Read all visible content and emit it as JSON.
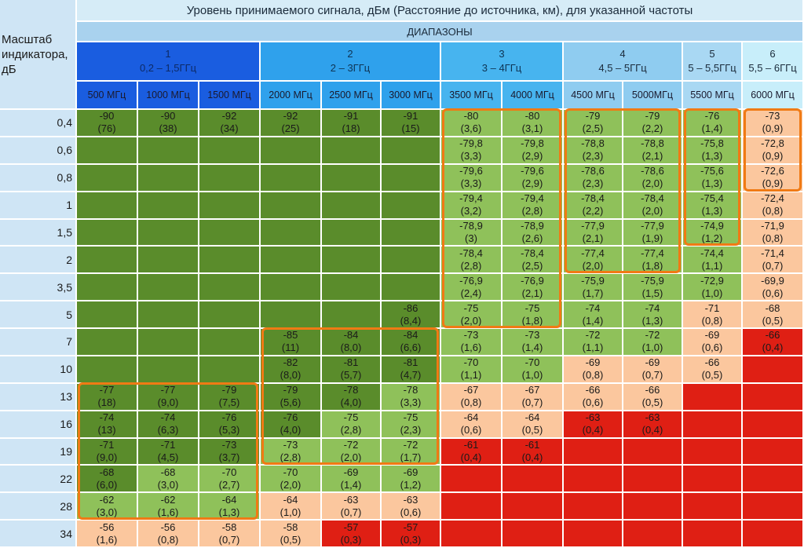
{
  "title": "Уровень принимаемого сигнала, дБм (Расстояние до источника, км), для указанной частоты",
  "ranges_label": "ДИАПАЗОНЫ",
  "corner_label": "Масштаб индикатора, дБ",
  "bands": [
    {
      "num": "1",
      "range": "0,2 – 1,5ГГц"
    },
    {
      "num": "2",
      "range": "2 – 3ГГц"
    },
    {
      "num": "3",
      "range": "3 – 4ГГц"
    },
    {
      "num": "4",
      "range": "4,5 – 5ГГц"
    },
    {
      "num": "5",
      "range": "5 – 5,5ГГц"
    },
    {
      "num": "6",
      "range": "5,5 – 6ГГц"
    }
  ],
  "frequencies": [
    "500 МГц",
    "1000 МГц",
    "1500 МГц",
    "2000 МГц",
    "2500 МГц",
    "3000 МГц",
    "3500 МГц",
    "4000 МГц",
    "4500 МГц",
    "5000МГц",
    "5500 МГц",
    "6000 МГц"
  ],
  "scales": [
    "0,4",
    "0,6",
    "0,8",
    "1",
    "1,5",
    "2",
    "3,5",
    "5",
    "7",
    "10",
    "13",
    "16",
    "19",
    "22",
    "28",
    "34"
  ],
  "colors": {
    "dark_green": "#5a8c2b",
    "light_green": "#8fc15a",
    "peach": "#fbc79e",
    "red": "#df1f14",
    "highlight": "#f07a14"
  },
  "grid": [
    [
      {
        "v": "-90",
        "d": "(76)",
        "c": "G"
      },
      {
        "v": "-90",
        "d": "(38)",
        "c": "G"
      },
      {
        "v": "-92",
        "d": "(34)",
        "c": "G"
      },
      {
        "v": "-92",
        "d": "(25)",
        "c": "G"
      },
      {
        "v": "-91",
        "d": "(18)",
        "c": "G"
      },
      {
        "v": "-91",
        "d": "(15)",
        "c": "G"
      },
      {
        "v": "-80",
        "d": "(3,6)",
        "c": "L"
      },
      {
        "v": "-80",
        "d": "(3,1)",
        "c": "L"
      },
      {
        "v": "-79",
        "d": "(2,5)",
        "c": "L"
      },
      {
        "v": "-79",
        "d": "(2,2)",
        "c": "L"
      },
      {
        "v": "-76",
        "d": "(1,4)",
        "c": "L"
      },
      {
        "v": "-73",
        "d": "(0,9)",
        "c": "P"
      }
    ],
    [
      {
        "v": "",
        "d": "",
        "c": "G"
      },
      {
        "v": "",
        "d": "",
        "c": "G"
      },
      {
        "v": "",
        "d": "",
        "c": "G"
      },
      {
        "v": "",
        "d": "",
        "c": "G"
      },
      {
        "v": "",
        "d": "",
        "c": "G"
      },
      {
        "v": "",
        "d": "",
        "c": "G"
      },
      {
        "v": "-79,8",
        "d": "(3,3)",
        "c": "L"
      },
      {
        "v": "-79,8",
        "d": "(2,9)",
        "c": "L"
      },
      {
        "v": "-78,8",
        "d": "(2,3)",
        "c": "L"
      },
      {
        "v": "-78,8",
        "d": "(2,1)",
        "c": "L"
      },
      {
        "v": "-75,8",
        "d": "(1,3)",
        "c": "L"
      },
      {
        "v": "-72,8",
        "d": "(0,9)",
        "c": "P"
      }
    ],
    [
      {
        "v": "",
        "d": "",
        "c": "G"
      },
      {
        "v": "",
        "d": "",
        "c": "G"
      },
      {
        "v": "",
        "d": "",
        "c": "G"
      },
      {
        "v": "",
        "d": "",
        "c": "G"
      },
      {
        "v": "",
        "d": "",
        "c": "G"
      },
      {
        "v": "",
        "d": "",
        "c": "G"
      },
      {
        "v": "-79,6",
        "d": "(3,3)",
        "c": "L"
      },
      {
        "v": "-79,6",
        "d": "(2,9)",
        "c": "L"
      },
      {
        "v": "-78,6",
        "d": "(2,3)",
        "c": "L"
      },
      {
        "v": "-78,6",
        "d": "(2,0)",
        "c": "L"
      },
      {
        "v": "-75,6",
        "d": "(1,3)",
        "c": "L"
      },
      {
        "v": "-72,6",
        "d": "(0,9)",
        "c": "P"
      }
    ],
    [
      {
        "v": "",
        "d": "",
        "c": "G"
      },
      {
        "v": "",
        "d": "",
        "c": "G"
      },
      {
        "v": "",
        "d": "",
        "c": "G"
      },
      {
        "v": "",
        "d": "",
        "c": "G"
      },
      {
        "v": "",
        "d": "",
        "c": "G"
      },
      {
        "v": "",
        "d": "",
        "c": "G"
      },
      {
        "v": "-79,4",
        "d": "(3,2)",
        "c": "L"
      },
      {
        "v": "-79,4",
        "d": "(2,8)",
        "c": "L"
      },
      {
        "v": "-78,4",
        "d": "(2,2)",
        "c": "L"
      },
      {
        "v": "-78,4",
        "d": "(2,0)",
        "c": "L"
      },
      {
        "v": "-75,4",
        "d": "(1,3)",
        "c": "L"
      },
      {
        "v": "-72,4",
        "d": "(0,8)",
        "c": "P"
      }
    ],
    [
      {
        "v": "",
        "d": "",
        "c": "G"
      },
      {
        "v": "",
        "d": "",
        "c": "G"
      },
      {
        "v": "",
        "d": "",
        "c": "G"
      },
      {
        "v": "",
        "d": "",
        "c": "G"
      },
      {
        "v": "",
        "d": "",
        "c": "G"
      },
      {
        "v": "",
        "d": "",
        "c": "G"
      },
      {
        "v": "-78,9",
        "d": "(3)",
        "c": "L"
      },
      {
        "v": "-78,9",
        "d": "(2,6)",
        "c": "L"
      },
      {
        "v": "-77,9",
        "d": "(2,1)",
        "c": "L"
      },
      {
        "v": "-77,9",
        "d": "(1,9)",
        "c": "L"
      },
      {
        "v": "-74,9",
        "d": "(1,2)",
        "c": "L"
      },
      {
        "v": "-71,9",
        "d": "(0,8)",
        "c": "P"
      }
    ],
    [
      {
        "v": "",
        "d": "",
        "c": "G"
      },
      {
        "v": "",
        "d": "",
        "c": "G"
      },
      {
        "v": "",
        "d": "",
        "c": "G"
      },
      {
        "v": "",
        "d": "",
        "c": "G"
      },
      {
        "v": "",
        "d": "",
        "c": "G"
      },
      {
        "v": "",
        "d": "",
        "c": "G"
      },
      {
        "v": "-78,4",
        "d": "(2,8)",
        "c": "L"
      },
      {
        "v": "-78,4",
        "d": "(2,5)",
        "c": "L"
      },
      {
        "v": "-77,4",
        "d": "(2,0)",
        "c": "L"
      },
      {
        "v": "-77,4",
        "d": "(1,8)",
        "c": "L"
      },
      {
        "v": "-74,4",
        "d": "(1,1)",
        "c": "L"
      },
      {
        "v": "-71,4",
        "d": "(0,7)",
        "c": "P"
      }
    ],
    [
      {
        "v": "",
        "d": "",
        "c": "G"
      },
      {
        "v": "",
        "d": "",
        "c": "G"
      },
      {
        "v": "",
        "d": "",
        "c": "G"
      },
      {
        "v": "",
        "d": "",
        "c": "G"
      },
      {
        "v": "",
        "d": "",
        "c": "G"
      },
      {
        "v": "",
        "d": "",
        "c": "G"
      },
      {
        "v": "-76,9",
        "d": "(2,4)",
        "c": "L"
      },
      {
        "v": "-76,9",
        "d": "(2,1)",
        "c": "L"
      },
      {
        "v": "-75,9",
        "d": "(1,7)",
        "c": "L"
      },
      {
        "v": "-75,9",
        "d": "(1,5)",
        "c": "L"
      },
      {
        "v": "-72,9",
        "d": "(1,0)",
        "c": "L"
      },
      {
        "v": "-69,9",
        "d": "(0,6)",
        "c": "P"
      }
    ],
    [
      {
        "v": "",
        "d": "",
        "c": "G"
      },
      {
        "v": "",
        "d": "",
        "c": "G"
      },
      {
        "v": "",
        "d": "",
        "c": "G"
      },
      {
        "v": "",
        "d": "",
        "c": "G"
      },
      {
        "v": "",
        "d": "",
        "c": "G"
      },
      {
        "v": "-86",
        "d": "(8,4)",
        "c": "G"
      },
      {
        "v": "-75",
        "d": "(2,0)",
        "c": "L"
      },
      {
        "v": "-75",
        "d": "(1,8)",
        "c": "L"
      },
      {
        "v": "-74",
        "d": "(1,4)",
        "c": "L"
      },
      {
        "v": "-74",
        "d": "(1,3)",
        "c": "L"
      },
      {
        "v": "-71",
        "d": "(0,8)",
        "c": "P"
      },
      {
        "v": "-68",
        "d": "(0,5)",
        "c": "P"
      }
    ],
    [
      {
        "v": "",
        "d": "",
        "c": "G"
      },
      {
        "v": "",
        "d": "",
        "c": "G"
      },
      {
        "v": "",
        "d": "",
        "c": "G"
      },
      {
        "v": "-85",
        "d": "(11)",
        "c": "G"
      },
      {
        "v": "-84",
        "d": "(8,0)",
        "c": "G"
      },
      {
        "v": "-84",
        "d": "(6,6)",
        "c": "G"
      },
      {
        "v": "-73",
        "d": "(1,6)",
        "c": "L"
      },
      {
        "v": "-73",
        "d": "(1,4)",
        "c": "L"
      },
      {
        "v": "-72",
        "d": "(1,1)",
        "c": "L"
      },
      {
        "v": "-72",
        "d": "(1,0)",
        "c": "L"
      },
      {
        "v": "-69",
        "d": "(0,6)",
        "c": "P"
      },
      {
        "v": "-66",
        "d": "(0,4)",
        "c": "R"
      }
    ],
    [
      {
        "v": "",
        "d": "",
        "c": "G"
      },
      {
        "v": "",
        "d": "",
        "c": "G"
      },
      {
        "v": "",
        "d": "",
        "c": "G"
      },
      {
        "v": "-82",
        "d": "(8,0)",
        "c": "G"
      },
      {
        "v": "-81",
        "d": "(5,7)",
        "c": "G"
      },
      {
        "v": "-81",
        "d": "(4,7)",
        "c": "G"
      },
      {
        "v": "-70",
        "d": "(1,1)",
        "c": "L"
      },
      {
        "v": "-70",
        "d": "(1,0)",
        "c": "L"
      },
      {
        "v": "-69",
        "d": "(0,8)",
        "c": "P"
      },
      {
        "v": "-69",
        "d": "(0,7)",
        "c": "P"
      },
      {
        "v": "-66",
        "d": "(0,5)",
        "c": "P"
      },
      {
        "v": "",
        "d": "",
        "c": "R"
      }
    ],
    [
      {
        "v": "-77",
        "d": "(18)",
        "c": "G"
      },
      {
        "v": "-77",
        "d": "(9,0)",
        "c": "G"
      },
      {
        "v": "-79",
        "d": "(7,5)",
        "c": "G"
      },
      {
        "v": "-79",
        "d": "(5,6)",
        "c": "G"
      },
      {
        "v": "-78",
        "d": "(4,0)",
        "c": "G"
      },
      {
        "v": "-78",
        "d": "(3,3)",
        "c": "L"
      },
      {
        "v": "-67",
        "d": "(0,8)",
        "c": "P"
      },
      {
        "v": "-67",
        "d": "(0,7)",
        "c": "P"
      },
      {
        "v": "-66",
        "d": "(0,6)",
        "c": "P"
      },
      {
        "v": "-66",
        "d": "(0,5)",
        "c": "P"
      },
      {
        "v": "",
        "d": "",
        "c": "R"
      },
      {
        "v": "",
        "d": "",
        "c": "R"
      }
    ],
    [
      {
        "v": "-74",
        "d": "(13)",
        "c": "G"
      },
      {
        "v": "-74",
        "d": "(6,3)",
        "c": "G"
      },
      {
        "v": "-76",
        "d": "(5,3)",
        "c": "G"
      },
      {
        "v": "-76",
        "d": "(4,0)",
        "c": "G"
      },
      {
        "v": "-75",
        "d": "(2,8)",
        "c": "L"
      },
      {
        "v": "-75",
        "d": "(2,3)",
        "c": "L"
      },
      {
        "v": "-64",
        "d": "(0,6)",
        "c": "P"
      },
      {
        "v": "-64",
        "d": "(0,5)",
        "c": "P"
      },
      {
        "v": "-63",
        "d": "(0,4)",
        "c": "R"
      },
      {
        "v": "-63",
        "d": "(0,4)",
        "c": "R"
      },
      {
        "v": "",
        "d": "",
        "c": "R"
      },
      {
        "v": "",
        "d": "",
        "c": "R"
      }
    ],
    [
      {
        "v": "-71",
        "d": "(9,0)",
        "c": "G"
      },
      {
        "v": "-71",
        "d": "(4,5)",
        "c": "G"
      },
      {
        "v": "-73",
        "d": "(3,7)",
        "c": "G"
      },
      {
        "v": "-73",
        "d": "(2,8)",
        "c": "L"
      },
      {
        "v": "-72",
        "d": "(2,0)",
        "c": "L"
      },
      {
        "v": "-72",
        "d": "(1,7)",
        "c": "L"
      },
      {
        "v": "-61",
        "d": "(0,4)",
        "c": "R"
      },
      {
        "v": "-61",
        "d": "(0,4)",
        "c": "R"
      },
      {
        "v": "",
        "d": "",
        "c": "R"
      },
      {
        "v": "",
        "d": "",
        "c": "R"
      },
      {
        "v": "",
        "d": "",
        "c": "R"
      },
      {
        "v": "",
        "d": "",
        "c": "R"
      }
    ],
    [
      {
        "v": "-68",
        "d": "(6,0)",
        "c": "G"
      },
      {
        "v": "-68",
        "d": "(3,0)",
        "c": "L"
      },
      {
        "v": "-70",
        "d": "(2,7)",
        "c": "L"
      },
      {
        "v": "-70",
        "d": "(2,0)",
        "c": "L"
      },
      {
        "v": "-69",
        "d": "(1,4)",
        "c": "L"
      },
      {
        "v": "-69",
        "d": "(1,2)",
        "c": "L"
      },
      {
        "v": "",
        "d": "",
        "c": "R"
      },
      {
        "v": "",
        "d": "",
        "c": "R"
      },
      {
        "v": "",
        "d": "",
        "c": "R"
      },
      {
        "v": "",
        "d": "",
        "c": "R"
      },
      {
        "v": "",
        "d": "",
        "c": "R"
      },
      {
        "v": "",
        "d": "",
        "c": "R"
      }
    ],
    [
      {
        "v": "-62",
        "d": "(3,0)",
        "c": "L"
      },
      {
        "v": "-62",
        "d": "(1,6)",
        "c": "L"
      },
      {
        "v": "-64",
        "d": "(1,3)",
        "c": "L"
      },
      {
        "v": "-64",
        "d": "(1,0)",
        "c": "P"
      },
      {
        "v": "-63",
        "d": "(0,7)",
        "c": "P"
      },
      {
        "v": "-63",
        "d": "(0,6)",
        "c": "P"
      },
      {
        "v": "",
        "d": "",
        "c": "R"
      },
      {
        "v": "",
        "d": "",
        "c": "R"
      },
      {
        "v": "",
        "d": "",
        "c": "R"
      },
      {
        "v": "",
        "d": "",
        "c": "R"
      },
      {
        "v": "",
        "d": "",
        "c": "R"
      },
      {
        "v": "",
        "d": "",
        "c": "R"
      }
    ],
    [
      {
        "v": "-56",
        "d": "(1,6)",
        "c": "P"
      },
      {
        "v": "-56",
        "d": "(0,8)",
        "c": "P"
      },
      {
        "v": "-58",
        "d": "(0,7)",
        "c": "P"
      },
      {
        "v": "-58",
        "d": "(0,5)",
        "c": "P"
      },
      {
        "v": "-57",
        "d": "(0,3)",
        "c": "R"
      },
      {
        "v": "-57",
        "d": "(0,3)",
        "c": "R"
      },
      {
        "v": "",
        "d": "",
        "c": "R"
      },
      {
        "v": "",
        "d": "",
        "c": "R"
      },
      {
        "v": "",
        "d": "",
        "c": "R"
      },
      {
        "v": "",
        "d": "",
        "c": "R"
      },
      {
        "v": "",
        "d": "",
        "c": "R"
      },
      {
        "v": "",
        "d": "",
        "c": "R"
      }
    ]
  ]
}
